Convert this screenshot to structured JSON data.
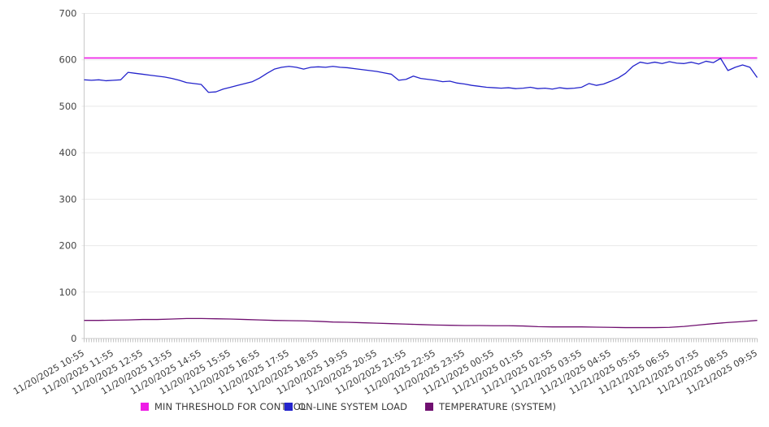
{
  "chart_data": {
    "type": "line",
    "title": "",
    "xlabel": "",
    "ylabel": "",
    "grid": "horizontal",
    "legend_position": "bottom",
    "yaxis": {
      "min": 0,
      "max": 700,
      "step": 100
    },
    "xaxis": {
      "hours_span": 23,
      "minor_tick_minutes": 5,
      "label_rotation": -30
    },
    "categories": [
      "11/20/2025 10:55",
      "11/20/2025 11:55",
      "11/20/2025 12:55",
      "11/20/2025 13:55",
      "11/20/2025 14:55",
      "11/20/2025 15:55",
      "11/20/2025 16:55",
      "11/20/2025 17:55",
      "11/20/2025 18:55",
      "11/20/2025 19:55",
      "11/20/2025 20:55",
      "11/20/2025 21:55",
      "11/20/2025 22:55",
      "11/20/2025 23:55",
      "11/21/2025 00:55",
      "11/21/2025 01:55",
      "11/21/2025 02:55",
      "11/21/2025 03:55",
      "11/21/2025 04:55",
      "11/21/2025 05:55",
      "11/21/2025 06:55",
      "11/21/2025 07:55",
      "11/21/2025 08:55",
      "11/21/2025 09:55"
    ],
    "series": [
      {
        "name": "MIN THRESHOLD FOR CONTROL",
        "color": "#ee1ce6",
        "width": 1.6,
        "x_step": 23,
        "values": [
          604,
          604
        ]
      },
      {
        "name": "ON-LINE SYSTEM LOAD",
        "color": "#2424cc",
        "width": 1.3,
        "x_step": 0.25,
        "values": [
          557,
          556,
          557,
          555,
          556,
          557,
          573,
          571,
          569,
          567,
          565,
          563,
          560,
          556,
          551,
          549,
          547,
          530,
          531,
          537,
          541,
          545,
          549,
          553,
          561,
          571,
          580,
          584,
          586,
          584,
          580,
          584,
          585,
          584,
          586,
          584,
          583,
          581,
          579,
          577,
          575,
          572,
          569,
          556,
          558,
          565,
          560,
          558,
          556,
          553,
          554,
          550,
          548,
          545,
          543,
          541,
          540,
          539,
          540,
          538,
          539,
          541,
          538,
          539,
          537,
          540,
          538,
          539,
          541,
          549,
          545,
          548,
          554,
          561,
          571,
          586,
          595,
          592,
          595,
          592,
          596,
          593,
          592,
          595,
          591,
          597,
          594,
          603,
          577,
          584,
          589,
          584,
          562
        ]
      },
      {
        "name": "TEMPERATURE (SYSTEM)",
        "color": "#701070",
        "width": 1.3,
        "x_step": 0.5,
        "values": [
          39,
          39,
          39.5,
          40,
          41,
          41,
          42,
          43,
          43,
          42.5,
          42,
          41,
          40,
          39,
          38.5,
          38,
          37,
          35.5,
          35,
          34,
          33,
          32,
          31,
          30,
          29,
          28.5,
          28,
          28,
          27.5,
          27.5,
          27,
          25.5,
          25,
          25,
          25,
          24.5,
          24,
          23.5,
          23.5,
          23.5,
          24,
          26,
          29,
          32,
          34.5,
          36.5,
          39
        ]
      }
    ]
  }
}
